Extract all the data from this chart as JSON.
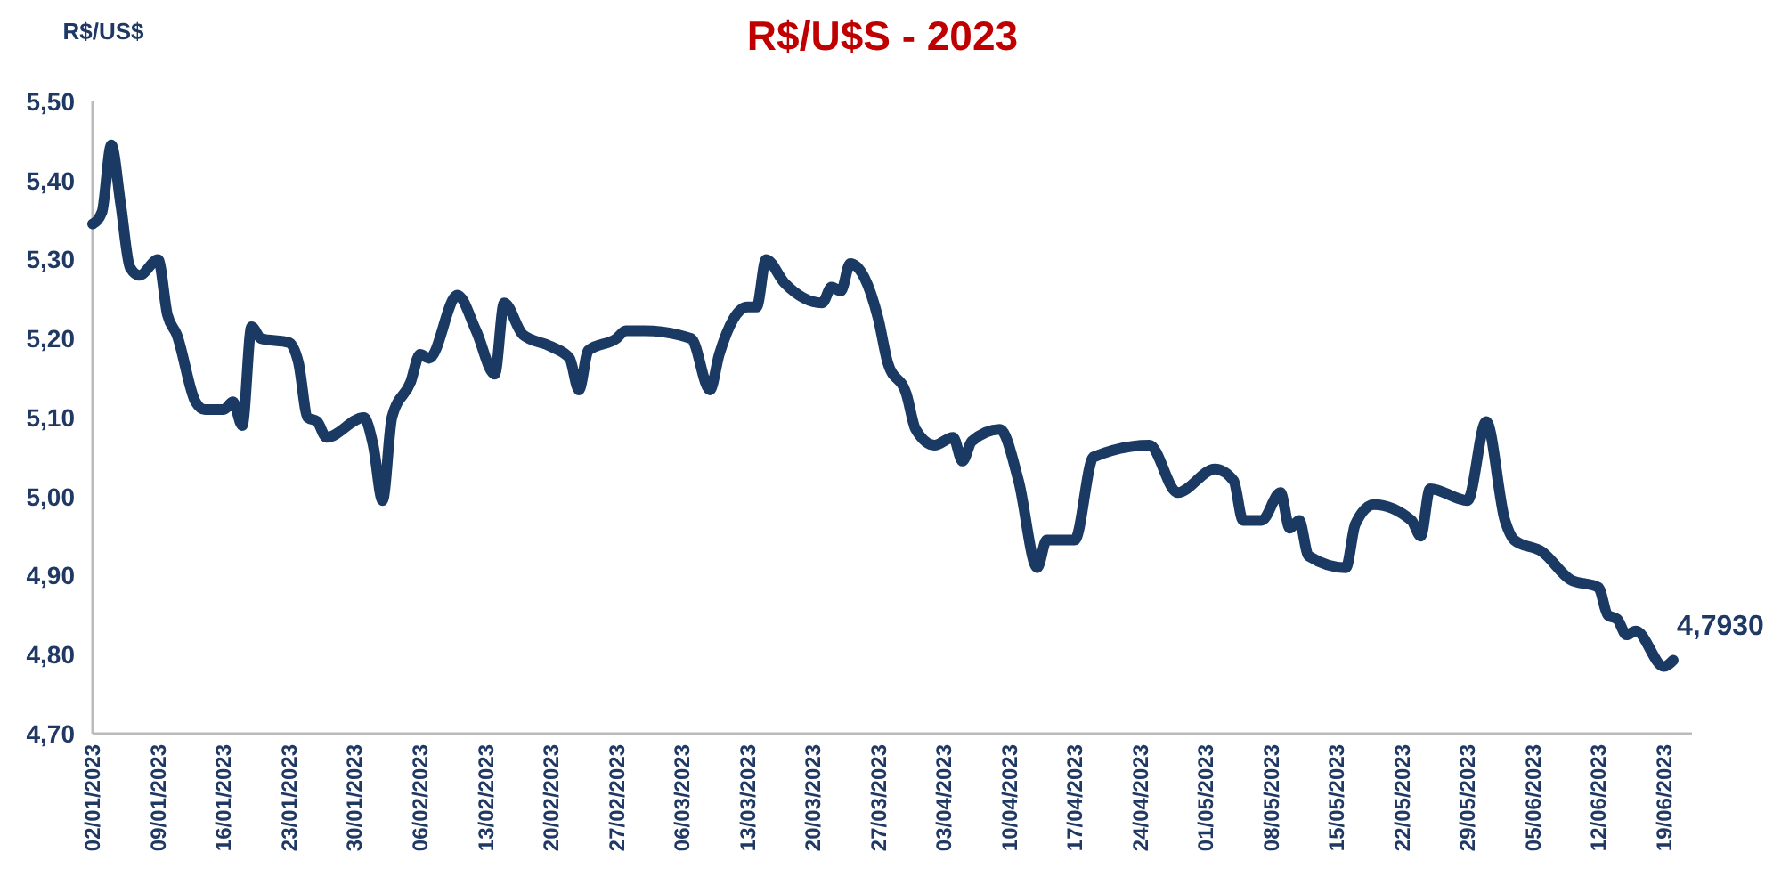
{
  "chart_data": {
    "type": "line",
    "title": "R$/U$S - 2023",
    "ylabel": "R$/US$",
    "x": [
      "2023-01-02",
      "2023-01-03",
      "2023-01-04",
      "2023-01-05",
      "2023-01-06",
      "2023-01-07",
      "2023-01-09",
      "2023-01-10",
      "2023-01-11",
      "2023-01-13",
      "2023-01-14",
      "2023-01-16",
      "2023-01-17",
      "2023-01-18",
      "2023-01-19",
      "2023-01-20",
      "2023-01-23",
      "2023-01-24",
      "2023-01-25",
      "2023-01-26",
      "2023-01-27",
      "2023-01-31",
      "2023-02-01",
      "2023-02-02",
      "2023-02-03",
      "2023-02-05",
      "2023-02-06",
      "2023-02-07",
      "2023-02-10",
      "2023-02-12",
      "2023-02-14",
      "2023-02-15",
      "2023-02-17",
      "2023-02-20",
      "2023-02-22",
      "2023-02-23",
      "2023-02-24",
      "2023-02-27",
      "2023-02-28",
      "2023-03-02",
      "2023-03-07",
      "2023-03-09",
      "2023-03-10",
      "2023-03-13",
      "2023-03-14",
      "2023-03-15",
      "2023-03-17",
      "2023-03-21",
      "2023-03-22",
      "2023-03-23",
      "2023-03-24",
      "2023-03-27",
      "2023-03-28",
      "2023-03-30",
      "2023-03-31",
      "2023-04-02",
      "2023-04-04",
      "2023-04-05",
      "2023-04-06",
      "2023-04-09",
      "2023-04-11",
      "2023-04-13",
      "2023-04-14",
      "2023-04-17",
      "2023-04-19",
      "2023-04-25",
      "2023-04-28",
      "2023-05-02",
      "2023-05-04",
      "2023-05-05",
      "2023-05-07",
      "2023-05-09",
      "2023-05-10",
      "2023-05-11",
      "2023-05-12",
      "2023-05-16",
      "2023-05-17",
      "2023-05-19",
      "2023-05-23",
      "2023-05-24",
      "2023-05-25",
      "2023-05-29",
      "2023-05-31",
      "2023-06-02",
      "2023-06-03",
      "2023-06-06",
      "2023-06-09",
      "2023-06-12",
      "2023-06-13",
      "2023-06-14",
      "2023-06-15",
      "2023-06-16",
      "2023-06-19",
      "2023-06-20"
    ],
    "series": [
      {
        "color": "#1b3a63",
        "values": [
          5.345,
          5.36,
          5.445,
          5.37,
          5.29,
          5.28,
          5.3,
          5.23,
          5.205,
          5.12,
          5.11,
          5.11,
          5.12,
          5.09,
          5.215,
          5.2,
          5.195,
          5.17,
          5.1,
          5.095,
          5.075,
          5.1,
          5.065,
          4.995,
          5.1,
          5.145,
          5.18,
          5.175,
          5.255,
          5.21,
          5.155,
          5.245,
          5.205,
          5.19,
          5.175,
          5.135,
          5.185,
          5.2,
          5.21,
          5.21,
          5.2,
          5.135,
          5.18,
          5.24,
          5.24,
          5.3,
          5.27,
          5.245,
          5.265,
          5.26,
          5.295,
          5.225,
          5.17,
          5.13,
          5.085,
          5.065,
          5.075,
          5.045,
          5.07,
          5.085,
          5.02,
          4.91,
          4.945,
          4.945,
          5.05,
          5.065,
          5.005,
          5.035,
          5.02,
          4.97,
          4.97,
          5.005,
          4.96,
          4.97,
          4.925,
          4.91,
          4.965,
          4.99,
          4.97,
          4.95,
          5.01,
          4.995,
          5.095,
          4.97,
          4.945,
          4.93,
          4.895,
          4.885,
          4.85,
          4.845,
          4.825,
          4.83,
          4.785,
          4.793
        ]
      }
    ],
    "xlim": [
      "2023-01-02",
      "2023-06-22"
    ],
    "xticks": [
      {
        "value": "2023-01-02",
        "label": "02/01/2023"
      },
      {
        "value": "2023-01-09",
        "label": "09/01/2023"
      },
      {
        "value": "2023-01-16",
        "label": "16/01/2023"
      },
      {
        "value": "2023-01-23",
        "label": "23/01/2023"
      },
      {
        "value": "2023-01-30",
        "label": "30/01/2023"
      },
      {
        "value": "2023-02-06",
        "label": "06/02/2023"
      },
      {
        "value": "2023-02-13",
        "label": "13/02/2023"
      },
      {
        "value": "2023-02-20",
        "label": "20/02/2023"
      },
      {
        "value": "2023-02-27",
        "label": "27/02/2023"
      },
      {
        "value": "2023-03-06",
        "label": "06/03/2023"
      },
      {
        "value": "2023-03-13",
        "label": "13/03/2023"
      },
      {
        "value": "2023-03-20",
        "label": "20/03/2023"
      },
      {
        "value": "2023-03-27",
        "label": "27/03/2023"
      },
      {
        "value": "2023-04-03",
        "label": "03/04/2023"
      },
      {
        "value": "2023-04-10",
        "label": "10/04/2023"
      },
      {
        "value": "2023-04-17",
        "label": "17/04/2023"
      },
      {
        "value": "2023-04-24",
        "label": "24/04/2023"
      },
      {
        "value": "2023-05-01",
        "label": "01/05/2023"
      },
      {
        "value": "2023-05-08",
        "label": "08/05/2023"
      },
      {
        "value": "2023-05-15",
        "label": "15/05/2023"
      },
      {
        "value": "2023-05-22",
        "label": "22/05/2023"
      },
      {
        "value": "2023-05-29",
        "label": "29/05/2023"
      },
      {
        "value": "2023-06-05",
        "label": "05/06/2023"
      },
      {
        "value": "2023-06-12",
        "label": "12/06/2023"
      },
      {
        "value": "2023-06-19",
        "label": "19/06/2023"
      }
    ],
    "ylim": [
      4.7,
      5.5
    ],
    "yticks": [
      {
        "value": 4.7,
        "label": "4,70"
      },
      {
        "value": 4.8,
        "label": "4,80"
      },
      {
        "value": 4.9,
        "label": "4,90"
      },
      {
        "value": 5.0,
        "label": "5,00"
      },
      {
        "value": 5.1,
        "label": "5,10"
      },
      {
        "value": 5.2,
        "label": "5,20"
      },
      {
        "value": 5.3,
        "label": "5,30"
      },
      {
        "value": 5.4,
        "label": "5,40"
      },
      {
        "value": 5.5,
        "label": "5,50"
      }
    ],
    "annotations": [
      {
        "text": "4,7930",
        "x": "2023-06-20",
        "y": 4.793
      }
    ],
    "grid": false,
    "marker": "none",
    "line_style": "solid"
  }
}
